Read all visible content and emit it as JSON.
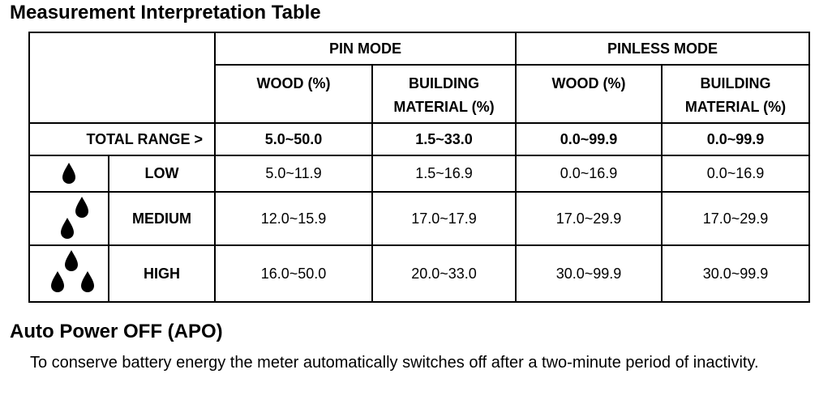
{
  "page_title": "Measurement Interpretation Table",
  "table": {
    "header": {
      "pin_mode": "PIN MODE",
      "pinless_mode": "PINLESS MODE",
      "wood": "WOOD (%)",
      "building_line1": "BUILDING",
      "building_line2": "MATERIAL (%)"
    },
    "total_range": {
      "label": "TOTAL RANGE >",
      "values": [
        "5.0~50.0",
        "1.5~33.0",
        "0.0~99.9",
        "0.0~99.9"
      ]
    },
    "rows": [
      {
        "icon": "one-drop-icon",
        "label": "LOW",
        "values": [
          "5.0~11.9",
          "1.5~16.9",
          "0.0~16.9",
          "0.0~16.9"
        ]
      },
      {
        "icon": "two-drops-icon",
        "label": "MEDIUM",
        "values": [
          "12.0~15.9",
          "17.0~17.9",
          "17.0~29.9",
          "17.0~29.9"
        ]
      },
      {
        "icon": "three-drops-icon",
        "label": "HIGH",
        "values": [
          "16.0~50.0",
          "20.0~33.0",
          "30.0~99.9",
          "30.0~99.9"
        ]
      }
    ]
  },
  "apo": {
    "heading": "Auto Power OFF (APO)",
    "text": "To conserve battery energy the meter automatically switches off after a two-minute period of inactivity."
  }
}
